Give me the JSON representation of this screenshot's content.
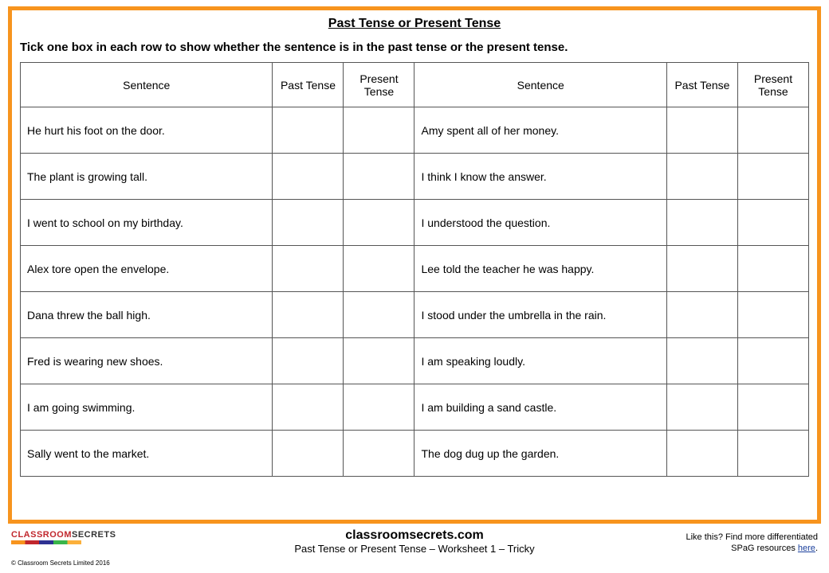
{
  "title": "Past Tense or Present Tense",
  "instruction": "Tick one box in each row to show whether the sentence is in the past tense or the present tense.",
  "headers": {
    "sentence": "Sentence",
    "past": "Past Tense",
    "present": "Present Tense"
  },
  "rows": [
    {
      "left": "He hurt his foot on the door.",
      "right": "Amy spent all of her money."
    },
    {
      "left": "The plant is growing tall.",
      "right": "I think I know the answer."
    },
    {
      "left": "I went to school on my birthday.",
      "right": "I understood the question."
    },
    {
      "left": "Alex tore open the envelope.",
      "right": "Lee told the teacher he was happy."
    },
    {
      "left": "Dana threw the ball high.",
      "right": "I stood under the umbrella in the rain."
    },
    {
      "left": "Fred is wearing new shoes.",
      "right": "I am speaking loudly."
    },
    {
      "left": "I am going swimming.",
      "right": "I am building a sand castle."
    },
    {
      "left": "Sally went to the market.",
      "right": "The dog dug up the garden."
    }
  ],
  "footer": {
    "site": "classroomsecrets.com",
    "subtitle": "Past Tense or Present Tense – Worksheet 1 – Tricky",
    "promo1": "Like this? Find more differentiated",
    "promo2a": "SPaG resources ",
    "promo2b": "here",
    "promo2c": ".",
    "copyright": "© Classroom Secrets Limited 2016",
    "logo1": "CLASSROOM",
    "logo2": "SECRETS"
  },
  "colors": {
    "border": "#f7941e",
    "cell_border": "#555555",
    "link": "#1a3f9c"
  }
}
